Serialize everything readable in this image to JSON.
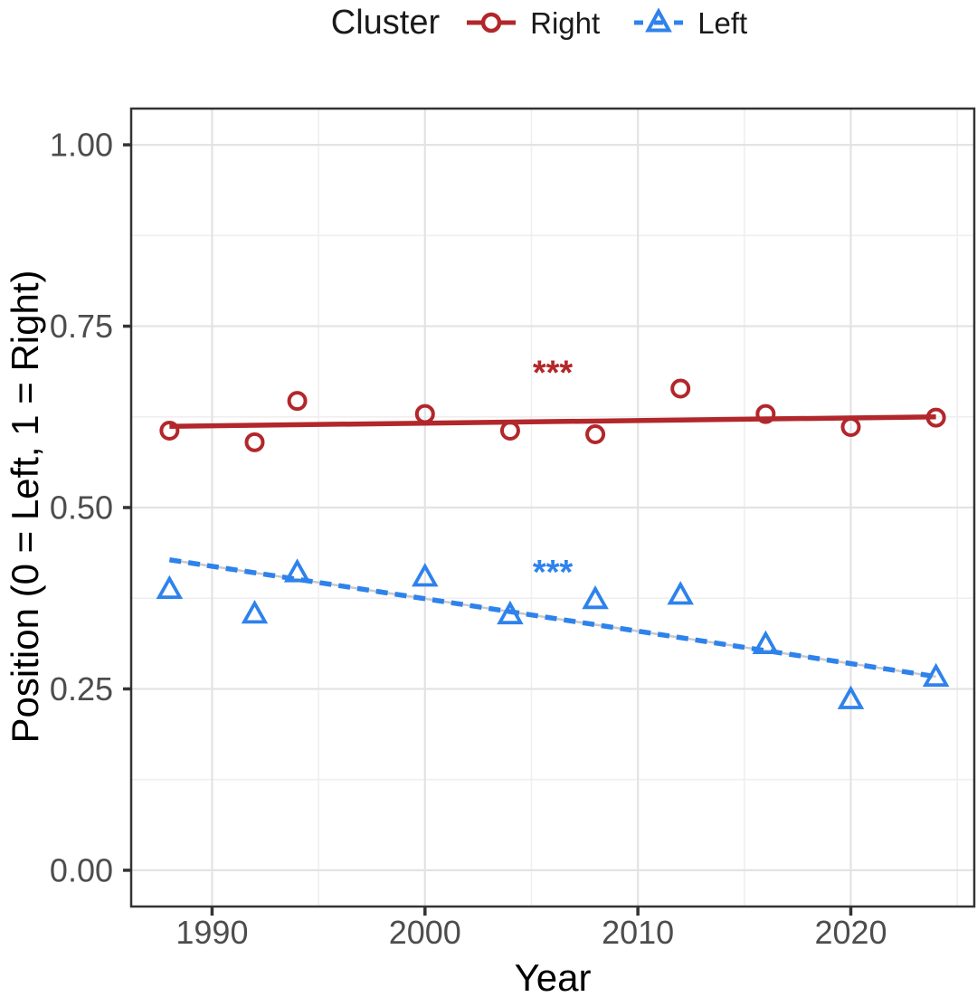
{
  "legend": {
    "title": "Cluster",
    "items": [
      {
        "label": "Right",
        "color": "#B2272B",
        "marker": "open-circle",
        "linestyle": "solid"
      },
      {
        "label": "Left",
        "color": "#2E82EC",
        "marker": "open-triangle",
        "linestyle": "dashed"
      }
    ]
  },
  "chart_data": {
    "type": "scatter",
    "title": "",
    "xlabel": "Year",
    "ylabel": "Position (0 = Left, 1 = Right)",
    "legend_position": "top",
    "grid": "major+minor",
    "xlim": [
      1986.2,
      2025.8
    ],
    "ylim": [
      -0.05,
      1.05
    ],
    "x_ticks": {
      "values": [
        1990,
        2000,
        2010,
        2020
      ],
      "labels": [
        "1990",
        "2000",
        "2010",
        "2020"
      ]
    },
    "y_ticks": {
      "values": [
        0,
        0.25,
        0.5,
        0.75,
        1
      ],
      "labels": [
        "0.00",
        "0.25",
        "0.50",
        "0.75",
        "1.00"
      ]
    },
    "x_minor": [
      1995,
      2005,
      2015,
      2025
    ],
    "y_minor": [
      0.125,
      0.375,
      0.625,
      0.875
    ],
    "x": [
      1988,
      1992,
      1994,
      2000,
      2004,
      2008,
      2012,
      2016,
      2020,
      2024
    ],
    "series": [
      {
        "name": "Right",
        "color": "#B2272B",
        "marker": "open-circle",
        "linestyle": "solid",
        "values": [
          0.606,
          0.59,
          0.647,
          0.629,
          0.606,
          0.601,
          0.664,
          0.629,
          0.611,
          0.624
        ],
        "trend": {
          "x": [
            1988,
            2024
          ],
          "y": [
            0.612,
            0.625
          ]
        },
        "annotation": {
          "text": "***",
          "x": 2006,
          "y": 0.685
        }
      },
      {
        "name": "Left",
        "color": "#2E82EC",
        "marker": "open-triangle",
        "linestyle": "dashed",
        "values": [
          0.387,
          0.353,
          0.41,
          0.404,
          0.352,
          0.373,
          0.379,
          0.311,
          0.235,
          0.266
        ],
        "trend": {
          "x": [
            1988,
            2024
          ],
          "y": [
            0.428,
            0.267
          ]
        },
        "annotation": {
          "text": "***",
          "x": 2006,
          "y": 0.41
        }
      }
    ],
    "style": {
      "background": "#FFFFFF",
      "grid_major_color": "#E3E3E3",
      "grid_minor_color": "#EFEFEF",
      "panel_border_color": "#333333",
      "tick_color": "#333333",
      "tick_label_color": "#4D4D4D",
      "axis_title_color": "#000000",
      "dashed_underlay_color": "#C9C9C9"
    }
  }
}
